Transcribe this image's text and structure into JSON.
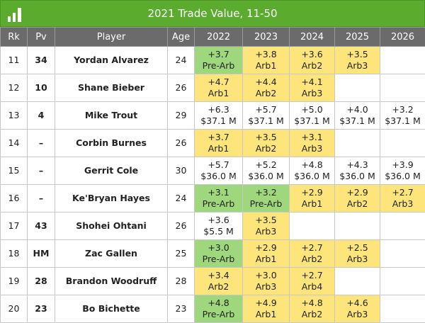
{
  "title": "2021 Trade Value, 11-50",
  "columns": [
    "Rk",
    "Pv",
    "Player",
    "Age",
    "2022",
    "2023",
    "2024",
    "2025",
    "2026"
  ],
  "rows": [
    {
      "rk": 11,
      "pv": 34,
      "player": "Yordan Alvarez",
      "age": 24,
      "cells": [
        {
          "value": "+3.7",
          "label": "Pre-Arb",
          "color": "#9ed77c"
        },
        {
          "value": "+3.8",
          "label": "Arb1",
          "color": "#fde57c"
        },
        {
          "value": "+3.6",
          "label": "Arb2",
          "color": "#fde57c"
        },
        {
          "value": "+3.5",
          "label": "Arb3",
          "color": "#fde57c"
        },
        null
      ]
    },
    {
      "rk": 12,
      "pv": 10,
      "player": "Shane Bieber",
      "age": 26,
      "cells": [
        {
          "value": "+4.7",
          "label": "Arb1",
          "color": "#fde57c"
        },
        {
          "value": "+4.4",
          "label": "Arb2",
          "color": "#fde57c"
        },
        {
          "value": "+4.1",
          "label": "Arb3",
          "color": "#fde57c"
        },
        null,
        null
      ]
    },
    {
      "rk": 13,
      "pv": 4,
      "player": "Mike Trout",
      "age": 29,
      "cells": [
        {
          "value": "+6.3",
          "label": "$37.1 M",
          "color": "#ffffff"
        },
        {
          "value": "+5.7",
          "label": "$37.1 M",
          "color": "#ffffff"
        },
        {
          "value": "+5.0",
          "label": "$37.1 M",
          "color": "#ffffff"
        },
        {
          "value": "+4.0",
          "label": "$37.1 M",
          "color": "#ffffff"
        },
        {
          "value": "+3.2",
          "label": "$37.1 M",
          "color": "#ffffff"
        }
      ]
    },
    {
      "rk": 14,
      "pv": "–",
      "player": "Corbin Burnes",
      "age": 26,
      "cells": [
        {
          "value": "+3.7",
          "label": "Arb1",
          "color": "#fde57c"
        },
        {
          "value": "+3.5",
          "label": "Arb2",
          "color": "#fde57c"
        },
        {
          "value": "+3.1",
          "label": "Arb3",
          "color": "#fde57c"
        },
        null,
        null
      ]
    },
    {
      "rk": 15,
      "pv": "–",
      "player": "Gerrit Cole",
      "age": 30,
      "cells": [
        {
          "value": "+5.7",
          "label": "$36.0 M",
          "color": "#ffffff"
        },
        {
          "value": "+5.2",
          "label": "$36.0 M",
          "color": "#ffffff"
        },
        {
          "value": "+4.8",
          "label": "$36.0 M",
          "color": "#ffffff"
        },
        {
          "value": "+4.3",
          "label": "$36.0 M",
          "color": "#ffffff"
        },
        {
          "value": "+3.9",
          "label": "$36.0 M",
          "color": "#ffffff"
        }
      ]
    },
    {
      "rk": 16,
      "pv": "–",
      "player": "Ke'Bryan Hayes",
      "age": 24,
      "cells": [
        {
          "value": "+3.1",
          "label": "Pre-Arb",
          "color": "#9ed77c"
        },
        {
          "value": "+3.2",
          "label": "Pre-Arb",
          "color": "#9ed77c"
        },
        {
          "value": "+2.9",
          "label": "Arb1",
          "color": "#fde57c"
        },
        {
          "value": "+2.9",
          "label": "Arb2",
          "color": "#fde57c"
        },
        {
          "value": "+2.7",
          "label": "Arb3",
          "color": "#fde57c"
        }
      ]
    },
    {
      "rk": 17,
      "pv": 43,
      "player": "Shohei Ohtani",
      "age": 26,
      "cells": [
        {
          "value": "+3.6",
          "label": "$5.5 M",
          "color": "#ffffff"
        },
        {
          "value": "+3.5",
          "label": "Arb3",
          "color": "#fde57c"
        },
        null,
        null,
        null
      ]
    },
    {
      "rk": 18,
      "pv": "HM",
      "player": "Zac Gallen",
      "age": 25,
      "cells": [
        {
          "value": "+3.0",
          "label": "Pre-Arb",
          "color": "#9ed77c"
        },
        {
          "value": "+2.9",
          "label": "Arb1",
          "color": "#fde57c"
        },
        {
          "value": "+2.7",
          "label": "Arb2",
          "color": "#fde57c"
        },
        {
          "value": "+2.5",
          "label": "Arb3",
          "color": "#fde57c"
        },
        null
      ]
    },
    {
      "rk": 19,
      "pv": 28,
      "player": "Brandon Woodruff",
      "age": 28,
      "cells": [
        {
          "value": "+3.4",
          "label": "Arb2",
          "color": "#fde57c"
        },
        {
          "value": "+3.0",
          "label": "Arb3",
          "color": "#fde57c"
        },
        {
          "value": "+2.7",
          "label": "Arb4",
          "color": "#fde57c"
        },
        null,
        null
      ]
    },
    {
      "rk": 20,
      "pv": 23,
      "player": "Bo Bichette",
      "age": 23,
      "cells": [
        {
          "value": "+4.8",
          "label": "Pre-Arb",
          "color": "#9ed77c"
        },
        {
          "value": "+4.9",
          "label": "Arb1",
          "color": "#fde57c"
        },
        {
          "value": "+4.8",
          "label": "Arb2",
          "color": "#fde57c"
        },
        {
          "value": "+4.6",
          "label": "Arb3",
          "color": "#fde57c"
        },
        null
      ]
    }
  ]
}
